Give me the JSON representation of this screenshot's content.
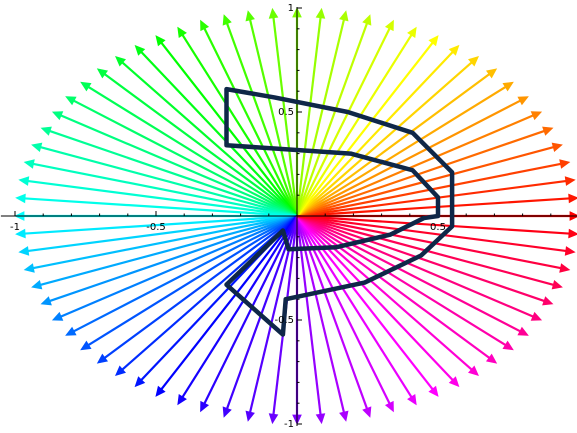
{
  "chart_data": {
    "type": "vector_field",
    "title": "",
    "xlabel": "",
    "ylabel": "",
    "xlim": [
      -1.05,
      1.02
    ],
    "ylim": [
      -1.0,
      1.0
    ],
    "x_ticks": [
      {
        "value": -1,
        "label": "-1"
      },
      {
        "value": -0.5,
        "label": "-0.5"
      },
      {
        "value": 0.5,
        "label": "0.5"
      }
    ],
    "y_ticks": [
      {
        "value": 1,
        "label": "1"
      },
      {
        "value": 0.5,
        "label": "0.5"
      },
      {
        "value": -0.5,
        "label": "-0.5"
      },
      {
        "value": -1,
        "label": "-1"
      }
    ],
    "vectors": {
      "origin": [
        0,
        0
      ],
      "count": 72,
      "length": 1.0,
      "coloring": "hue by angle",
      "arrowheads": true
    },
    "outline_shape": {
      "stroke": "#0f2748",
      "fill": "none",
      "points": [
        [
          -0.25,
          0.61
        ],
        [
          -0.25,
          0.34
        ],
        [
          0.19,
          0.3
        ],
        [
          0.41,
          0.22
        ],
        [
          0.5,
          0.09
        ],
        [
          0.5,
          0.0
        ],
        [
          0.45,
          -0.01
        ],
        [
          0.33,
          -0.09
        ],
        [
          0.14,
          -0.15
        ],
        [
          -0.03,
          -0.16
        ],
        [
          -0.05,
          -0.07
        ],
        [
          -0.25,
          -0.33
        ],
        [
          -0.05,
          -0.57
        ],
        [
          -0.04,
          -0.4
        ],
        [
          0.24,
          -0.32
        ],
        [
          0.44,
          -0.19
        ],
        [
          0.55,
          -0.05
        ],
        [
          0.55,
          0.21
        ],
        [
          0.41,
          0.4
        ],
        [
          0.18,
          0.5
        ],
        [
          -0.08,
          0.57
        ],
        [
          -0.25,
          0.61
        ]
      ]
    },
    "grid": false,
    "legend": "none"
  }
}
